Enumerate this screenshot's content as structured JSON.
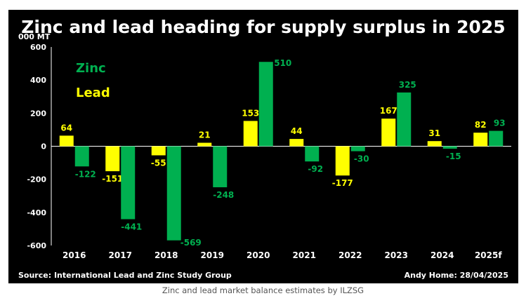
{
  "chart_data": {
    "type": "bar",
    "title": "Zinc and lead heading for supply surplus in 2025",
    "ylabel": "000 MT",
    "categories": [
      "2016",
      "2017",
      "2018",
      "2019",
      "2020",
      "2021",
      "2022",
      "2023",
      "2024",
      "2025f"
    ],
    "series": [
      {
        "name": "Lead",
        "color": "#ffff00",
        "values": [
          64,
          -151,
          -55,
          21,
          153,
          44,
          -177,
          167,
          31,
          82
        ]
      },
      {
        "name": "Zinc",
        "color": "#00b050",
        "values": [
          -122,
          -441,
          -569,
          -248,
          510,
          -92,
          -30,
          325,
          -15,
          93
        ]
      }
    ],
    "ylim": [
      -600,
      600
    ],
    "yticks": [
      600,
      400,
      200,
      0,
      -200,
      -400,
      -600
    ],
    "grid": false,
    "legend_position": "top-left",
    "source": "Source: International Lead and Zinc Study Group",
    "credit": "Andy Home: 28/04/2025"
  },
  "caption": "Zinc and lead market balance estimates by ILZSG"
}
